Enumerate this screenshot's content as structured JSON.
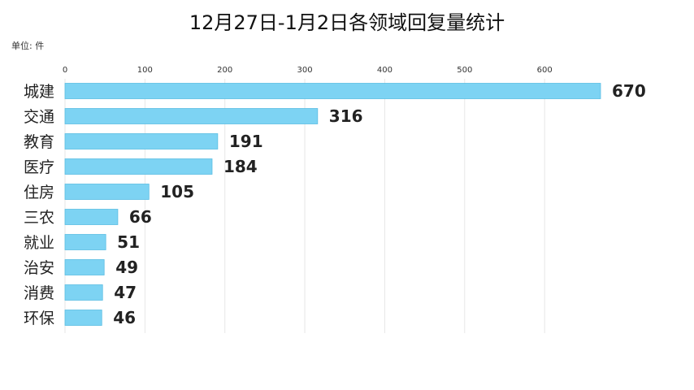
{
  "chart_data": {
    "type": "bar",
    "orientation": "horizontal",
    "title": "12月27日-1月2日各领域回复量统计",
    "unit_label": "单位: 件",
    "xlim": [
      0,
      670
    ],
    "ticks": [
      0,
      100,
      200,
      300,
      400,
      500,
      600
    ],
    "grid": true,
    "bar_color": "#7dd3f3",
    "bar_stroke": "#5bbde3",
    "categories": [
      "城建",
      "交通",
      "教育",
      "医疗",
      "住房",
      "三农",
      "就业",
      "治安",
      "消费",
      "环保"
    ],
    "values": [
      670,
      316,
      191,
      184,
      105,
      66,
      51,
      49,
      47,
      46
    ]
  }
}
